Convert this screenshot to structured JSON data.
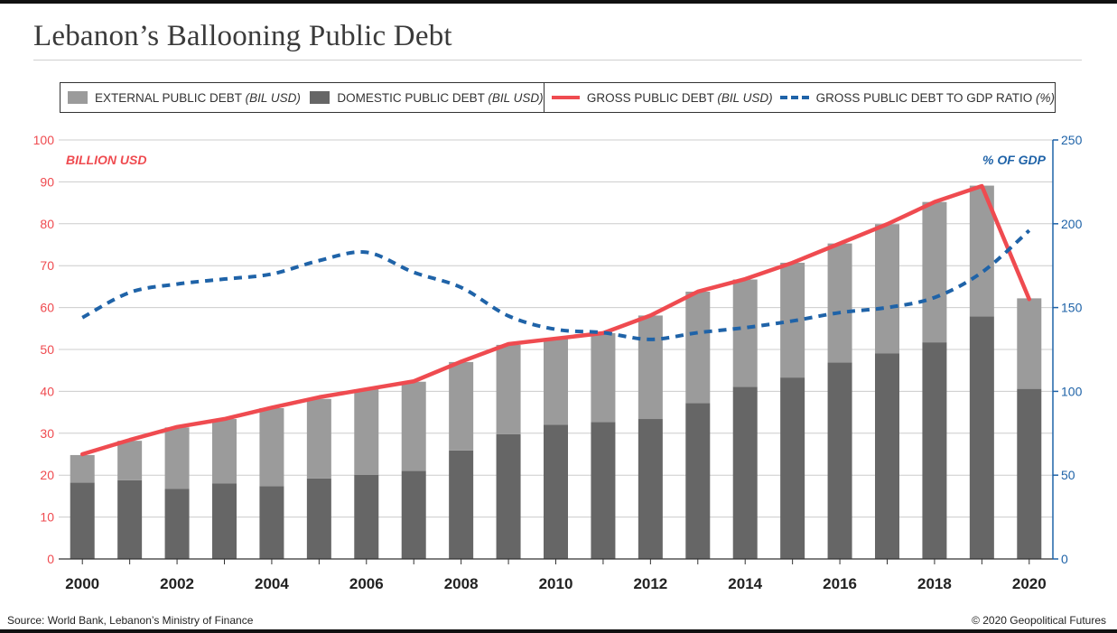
{
  "title": "Lebanon’s Ballooning Public Debt",
  "legend": [
    {
      "label": "EXTERNAL PUBLIC DEBT",
      "unit": "(BIL USD)",
      "swatch": "box",
      "color": "#9b9b9b"
    },
    {
      "label": "DOMESTIC PUBLIC DEBT",
      "unit": "(BIL USD)",
      "swatch": "box",
      "color": "#666666"
    },
    {
      "label": "GROSS PUBLIC DEBT",
      "unit": "(BIL USD)",
      "swatch": "line",
      "color": "#ef4b50"
    },
    {
      "label": "GROSS PUBLIC DEBT TO GDP RATIO",
      "unit": "(%)",
      "swatch": "dash",
      "color": "#1f63a8"
    }
  ],
  "footer": {
    "source": "Source: World Bank, Lebanon’s Ministry of Finance",
    "credit": "© 2020 Geopolitical Futures"
  },
  "chart_data": {
    "type": "bar",
    "stacked": true,
    "x": [
      2000,
      2001,
      2002,
      2003,
      2004,
      2005,
      2006,
      2007,
      2008,
      2009,
      2010,
      2011,
      2012,
      2013,
      2014,
      2015,
      2016,
      2017,
      2018,
      2019,
      2020
    ],
    "x_tick_labels": [
      "2000",
      "2002",
      "2004",
      "2006",
      "2008",
      "2010",
      "2012",
      "2014",
      "2016",
      "2018",
      "2020"
    ],
    "series": [
      {
        "name": "DOMESTIC PUBLIC DEBT (BIL USD)",
        "type": "bar",
        "axis": "left",
        "color": "#666666",
        "values": [
          18.2,
          18.8,
          16.7,
          18.0,
          17.4,
          19.2,
          20.1,
          21.0,
          25.9,
          29.8,
          32.0,
          32.7,
          33.4,
          37.2,
          41.1,
          43.3,
          46.9,
          49.1,
          51.7,
          57.9,
          40.6
        ]
      },
      {
        "name": "EXTERNAL PUBLIC DEBT (BIL USD)",
        "type": "bar",
        "axis": "left",
        "color": "#9b9b9b",
        "values": [
          6.6,
          9.4,
          14.7,
          15.4,
          18.6,
          19.0,
          20.4,
          21.3,
          21.1,
          21.3,
          20.6,
          21.2,
          24.7,
          26.6,
          25.6,
          27.4,
          28.4,
          30.8,
          33.5,
          31.2,
          21.6
        ]
      },
      {
        "name": "GROSS PUBLIC DEBT (BIL USD)",
        "type": "line",
        "axis": "left",
        "color": "#ef4b50",
        "values": [
          25.0,
          28.4,
          31.5,
          33.4,
          36.1,
          38.6,
          40.5,
          42.4,
          47.1,
          51.3,
          52.6,
          53.9,
          58.1,
          63.8,
          66.8,
          70.7,
          75.3,
          79.9,
          85.2,
          89.0,
          62.0
        ]
      },
      {
        "name": "GROSS PUBLIC DEBT TO GDP RATIO (%)",
        "type": "line",
        "style": "dashed",
        "axis": "right",
        "color": "#1f63a8",
        "values": [
          144,
          159,
          164,
          167,
          170,
          178,
          183,
          171,
          162,
          145,
          137,
          135,
          131,
          135,
          138,
          142,
          147,
          150,
          156,
          171,
          196
        ]
      }
    ],
    "y_left": {
      "label": "BILLION USD",
      "min": 0,
      "max": 100,
      "ticks": [
        0,
        10,
        20,
        30,
        40,
        50,
        60,
        70,
        80,
        90,
        100
      ],
      "color": "#ef4b50"
    },
    "y_right": {
      "label": "% OF GDP",
      "min": 0,
      "max": 250,
      "ticks": [
        0,
        50,
        100,
        150,
        200,
        250
      ],
      "color": "#1f63a8"
    },
    "grid": true,
    "legend_position": "top"
  }
}
